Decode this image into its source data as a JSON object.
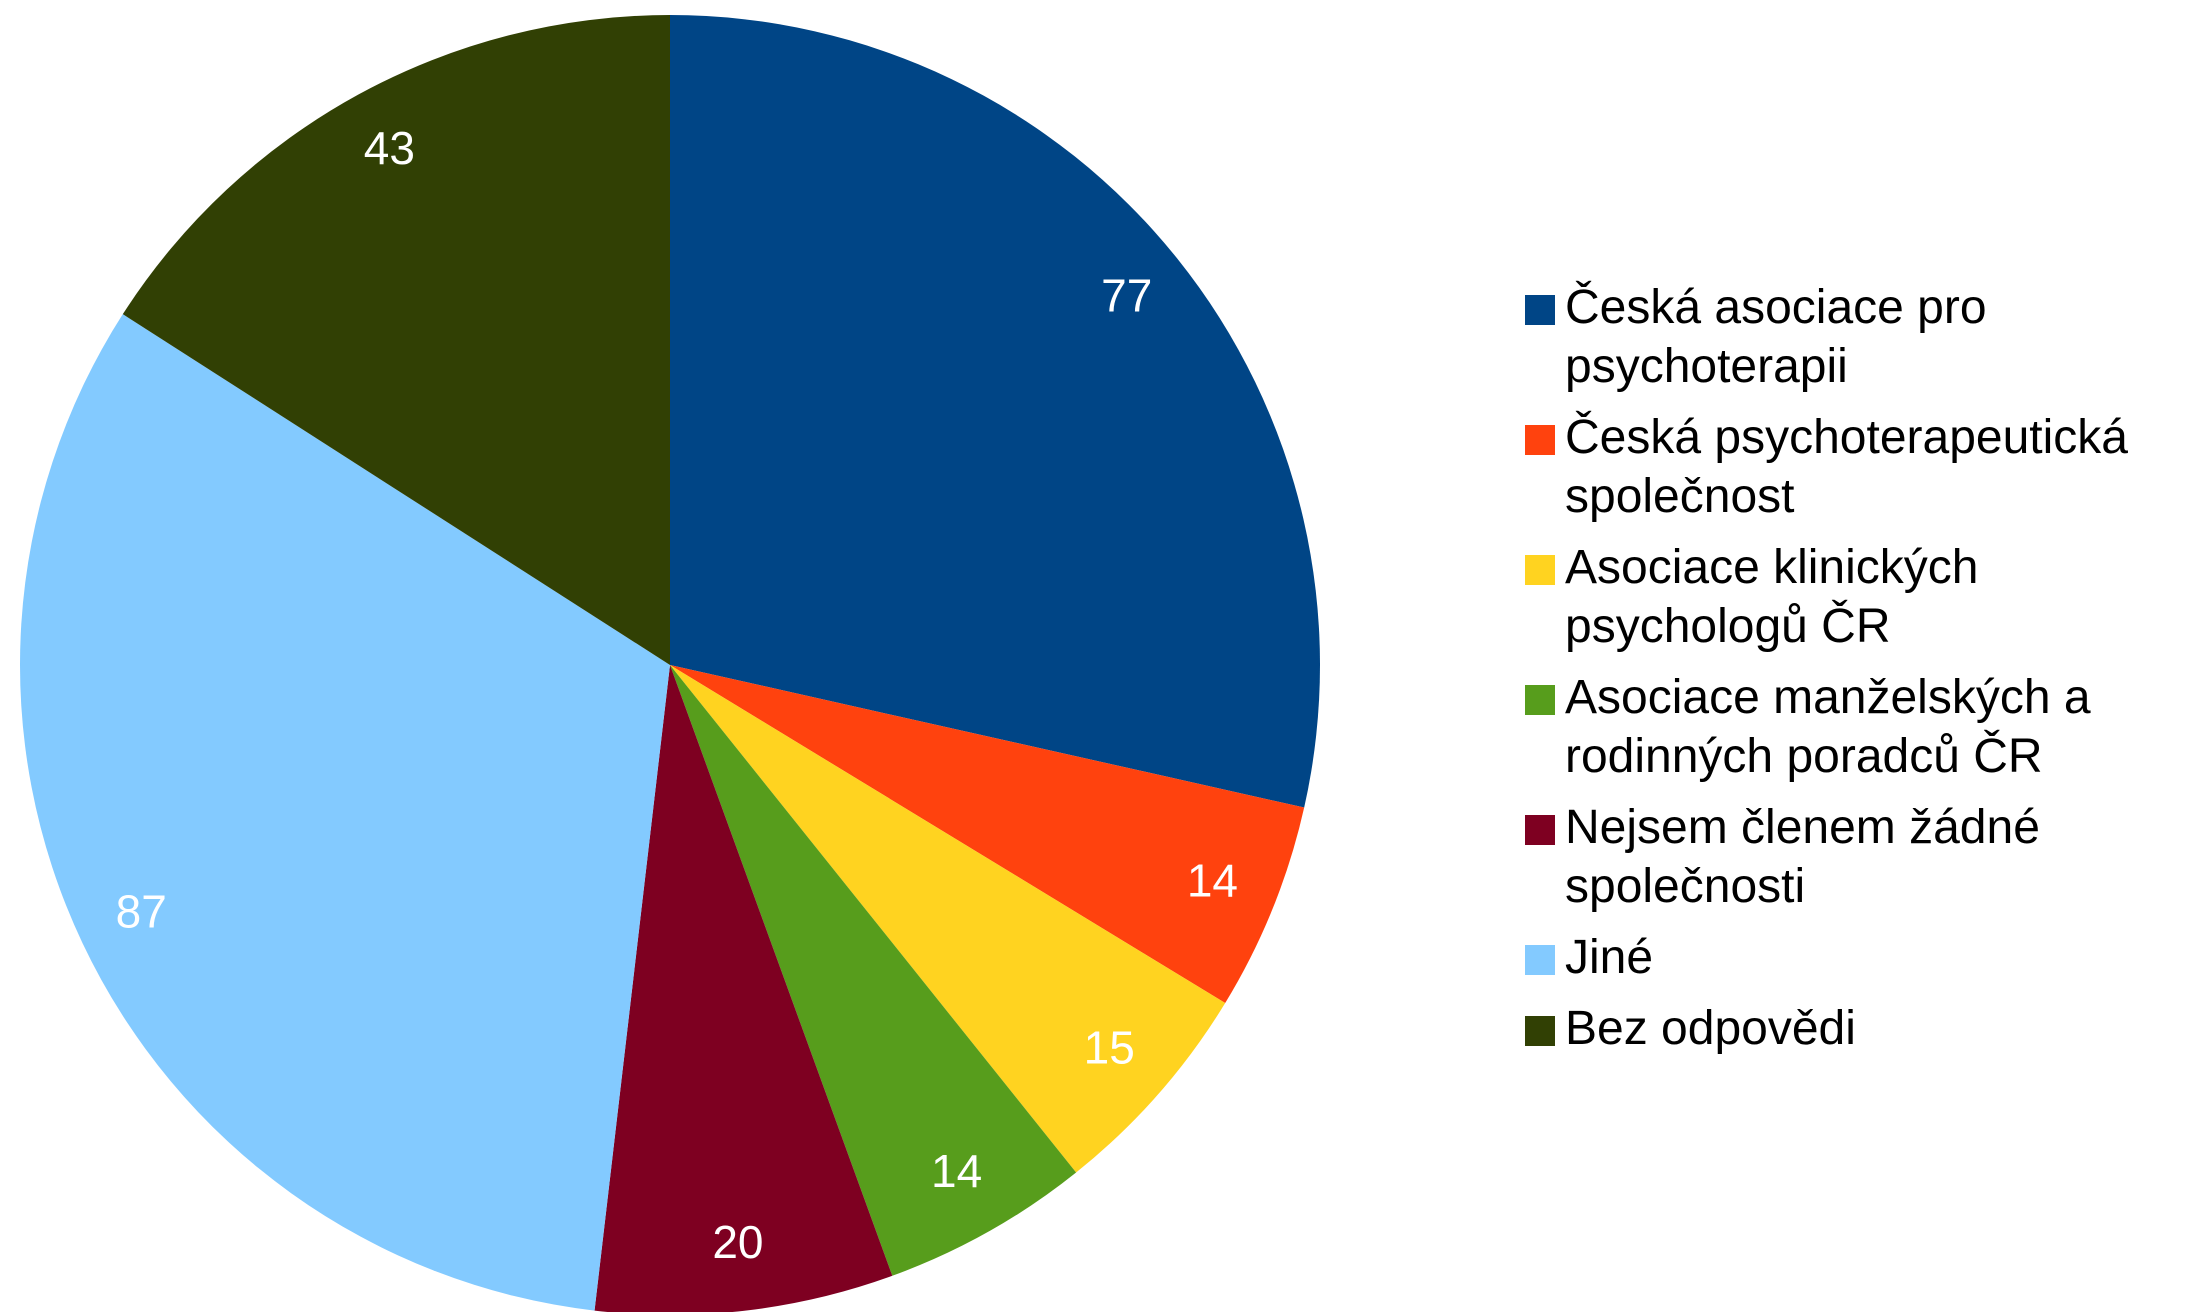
{
  "chart_data": {
    "type": "pie",
    "categories": [
      "Česká asociace pro psychoterapii",
      "Česká psychoterapeutická společnost",
      "Asociace klinických psychologů ČR",
      "Asociace manželských a rodinných poradců ČR",
      "Nejsem členem žádné společnosti",
      "Jiné",
      "Bez odpovědi"
    ],
    "values": [
      77,
      14,
      15,
      14,
      20,
      87,
      43
    ],
    "colors": [
      "#004586",
      "#ff420e",
      "#ffd320",
      "#579d1c",
      "#7e0021",
      "#83caff",
      "#314004"
    ],
    "legend": "right"
  }
}
